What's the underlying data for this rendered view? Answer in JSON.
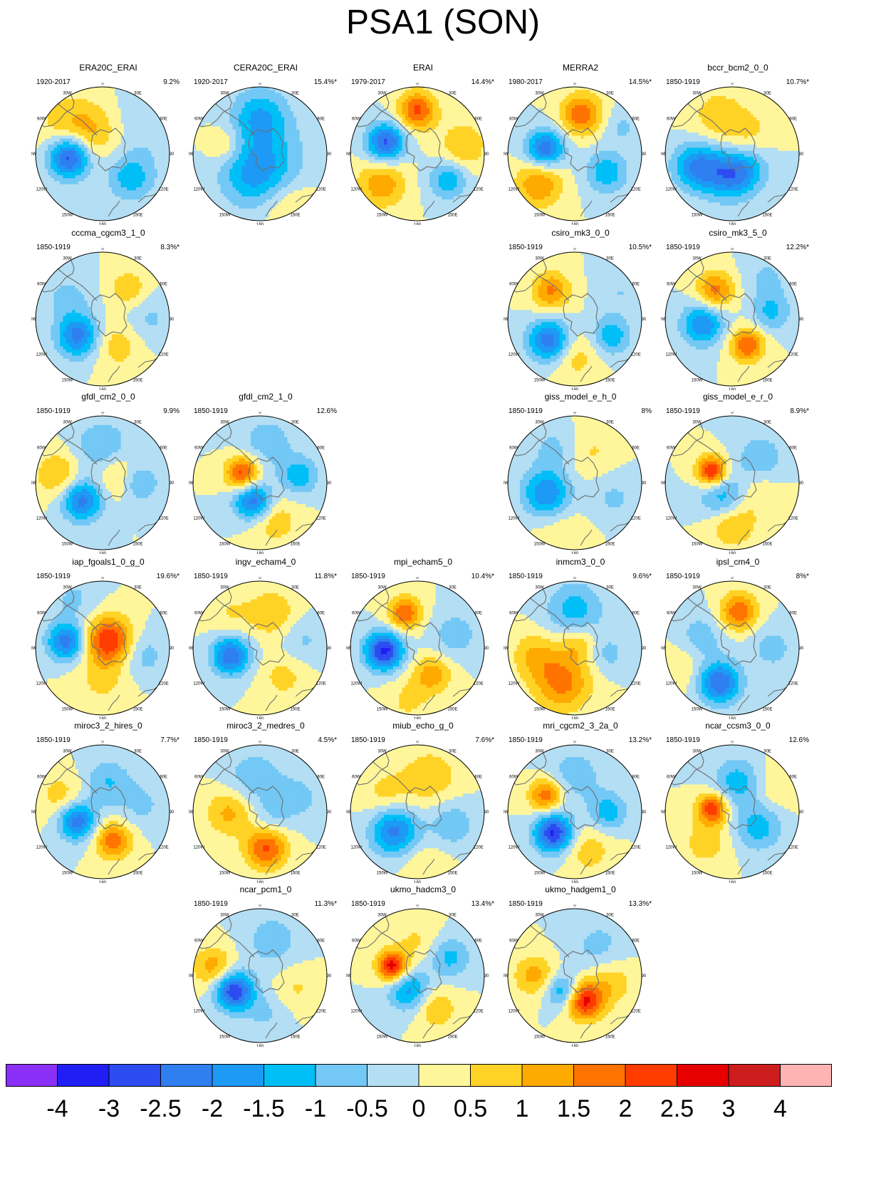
{
  "title": "PSA1 (SON)",
  "longitude_labels": [
    "0",
    "30E",
    "60E",
    "90E",
    "120E",
    "150E",
    "180",
    "150W",
    "120W",
    "90W",
    "60W",
    "30W"
  ],
  "colors": {
    "coast": "#6e6e6e",
    "border": "#000000",
    "palette": [
      "#8a2ff5",
      "#1e1ef5",
      "#2c4cf0",
      "#2f7ff0",
      "#1c9af5",
      "#00bff7",
      "#73c8f5",
      "#b3def3",
      "#fff69b",
      "#ffd326",
      "#ffaa00",
      "#ff7300",
      "#ff3c00",
      "#e60000",
      "#cd1c1c",
      "#ffb4b4"
    ]
  },
  "colorbar": {
    "labels": [
      "-4",
      "-3",
      "-2.5",
      "-2",
      "-1.5",
      "-1",
      "-0.5",
      "0",
      "0.5",
      "1",
      "1.5",
      "2",
      "2.5",
      "3",
      "4"
    ]
  },
  "chart_data": {
    "type": "polar stereographic contour maps",
    "levels": [
      -4,
      -3,
      -2.5,
      -2,
      -1.5,
      -1,
      -0.5,
      0,
      0.5,
      1,
      1.5,
      2,
      2.5,
      3,
      4
    ],
    "panels": [
      {
        "name": "ERA20C_ERAI",
        "period": "1920-2017",
        "percent": "9.2%",
        "row": 0,
        "col": 0,
        "anomalies": [
          {
            "lon": 265,
            "r": 0.5,
            "v": -3.0,
            "s": 0.22
          },
          {
            "lon": 130,
            "r": 0.55,
            "v": -1.3,
            "s": 0.25
          },
          {
            "lon": 60,
            "r": 0.85,
            "v": -0.5,
            "s": 0.4
          },
          {
            "lon": 330,
            "r": 0.35,
            "v": 0.9,
            "s": 0.3
          },
          {
            "lon": 310,
            "r": 0.7,
            "v": 0.7,
            "s": 0.35
          }
        ]
      },
      {
        "name": "CERA20C_ERAI",
        "period": "1920-2017",
        "percent": "15.4%*",
        "row": 0,
        "col": 1,
        "anomalies": [
          {
            "lon": 0,
            "r": 0.55,
            "v": -1.5,
            "s": 0.3
          },
          {
            "lon": 200,
            "r": 0.35,
            "v": -1.3,
            "s": 0.35
          },
          {
            "lon": 120,
            "r": 0.25,
            "v": -0.8,
            "s": 0.4
          },
          {
            "lon": 285,
            "r": 0.55,
            "v": 0.8,
            "s": 0.18
          },
          {
            "lon": 150,
            "r": 0.9,
            "v": 0.7,
            "s": 0.3
          }
        ]
      },
      {
        "name": "ERAI",
        "period": "1979-2017",
        "percent": "14.4%*",
        "row": 0,
        "col": 2,
        "anomalies": [
          {
            "lon": 290,
            "r": 0.5,
            "v": -2.6,
            "s": 0.2
          },
          {
            "lon": 0,
            "r": 0.65,
            "v": 2.1,
            "s": 0.2
          },
          {
            "lon": 230,
            "r": 0.7,
            "v": 1.4,
            "s": 0.25
          },
          {
            "lon": 130,
            "r": 0.6,
            "v": -1.4,
            "s": 0.2
          },
          {
            "lon": 80,
            "r": 0.7,
            "v": 1.0,
            "s": 0.25
          }
        ]
      },
      {
        "name": "MERRA2",
        "period": "1980-2017",
        "percent": "14.5%*",
        "row": 0,
        "col": 3,
        "anomalies": [
          {
            "lon": 280,
            "r": 0.45,
            "v": -2.4,
            "s": 0.2
          },
          {
            "lon": 10,
            "r": 0.6,
            "v": 1.9,
            "s": 0.22
          },
          {
            "lon": 230,
            "r": 0.7,
            "v": 1.5,
            "s": 0.25
          },
          {
            "lon": 120,
            "r": 0.55,
            "v": -1.4,
            "s": 0.22
          },
          {
            "lon": 60,
            "r": 0.8,
            "v": -0.6,
            "s": 0.2
          }
        ]
      },
      {
        "name": "bccr_bcm2_0_0",
        "period": "1850-1919",
        "percent": "10.7%*",
        "row": 0,
        "col": 4,
        "anomalies": [
          {
            "lon": 250,
            "r": 0.55,
            "v": -2.1,
            "s": 0.25
          },
          {
            "lon": 190,
            "r": 0.35,
            "v": -1.6,
            "s": 0.25
          },
          {
            "lon": 140,
            "r": 0.3,
            "v": -1.2,
            "s": 0.25
          },
          {
            "lon": 340,
            "r": 0.6,
            "v": 0.8,
            "s": 0.3
          },
          {
            "lon": 40,
            "r": 0.4,
            "v": 0.6,
            "s": 0.25
          }
        ]
      },
      {
        "name": "cccma_cgcm3_1_0",
        "period": "1850-1919",
        "percent": "8.3%*",
        "row": 1,
        "col": 0,
        "anomalies": [
          {
            "lon": 235,
            "r": 0.45,
            "v": -2.2,
            "s": 0.22
          },
          {
            "lon": 300,
            "r": 0.6,
            "v": -0.7,
            "s": 0.25
          },
          {
            "lon": 40,
            "r": 0.6,
            "v": 0.9,
            "s": 0.2
          },
          {
            "lon": 150,
            "r": 0.45,
            "v": 0.8,
            "s": 0.25
          },
          {
            "lon": 90,
            "r": 0.7,
            "v": -0.6,
            "s": 0.25
          }
        ]
      },
      {
        "name": "csiro_mk3_0_0",
        "period": "1850-1919",
        "percent": "10.5%*",
        "row": 1,
        "col": 3,
        "anomalies": [
          {
            "lon": 230,
            "r": 0.5,
            "v": -2.4,
            "s": 0.22
          },
          {
            "lon": 320,
            "r": 0.55,
            "v": 1.6,
            "s": 0.2
          },
          {
            "lon": 115,
            "r": 0.6,
            "v": -1.4,
            "s": 0.2
          },
          {
            "lon": 180,
            "r": 0.55,
            "v": 0.8,
            "s": 0.25
          },
          {
            "lon": 60,
            "r": 0.8,
            "v": -0.5,
            "s": 0.25
          }
        ]
      },
      {
        "name": "csiro_mk3_5_0",
        "period": "1850-1919",
        "percent": "12.2%*",
        "row": 1,
        "col": 4,
        "anomalies": [
          {
            "lon": 260,
            "r": 0.45,
            "v": -2.0,
            "s": 0.22
          },
          {
            "lon": 150,
            "r": 0.45,
            "v": 2.0,
            "s": 0.18
          },
          {
            "lon": 330,
            "r": 0.5,
            "v": 1.7,
            "s": 0.2
          },
          {
            "lon": 80,
            "r": 0.6,
            "v": -1.1,
            "s": 0.2
          },
          {
            "lon": 40,
            "r": 0.8,
            "v": -0.6,
            "s": 0.25
          }
        ]
      },
      {
        "name": "gfdl_cm2_0_0",
        "period": "1850-1919",
        "percent": "9.9%",
        "row": 2,
        "col": 0,
        "anomalies": [
          {
            "lon": 230,
            "r": 0.4,
            "v": -2.3,
            "s": 0.22
          },
          {
            "lon": 0,
            "r": 0.5,
            "v": -1.1,
            "s": 0.3
          },
          {
            "lon": 90,
            "r": 0.55,
            "v": -1.2,
            "s": 0.2
          },
          {
            "lon": 280,
            "r": 0.65,
            "v": 1.1,
            "s": 0.25
          },
          {
            "lon": 60,
            "r": 0.25,
            "v": 1.0,
            "s": 0.25
          }
        ]
      },
      {
        "name": "gfdl_cm2_1_0",
        "period": "1850-1919",
        "percent": "12.6%",
        "row": 2,
        "col": 1,
        "anomalies": [
          {
            "lon": 200,
            "r": 0.3,
            "v": -2.4,
            "s": 0.2
          },
          {
            "lon": 300,
            "r": 0.3,
            "v": 2.3,
            "s": 0.18
          },
          {
            "lon": 80,
            "r": 0.6,
            "v": -1.3,
            "s": 0.2
          },
          {
            "lon": 160,
            "r": 0.6,
            "v": 0.9,
            "s": 0.25
          },
          {
            "lon": 10,
            "r": 0.6,
            "v": -0.8,
            "s": 0.3
          }
        ]
      },
      {
        "name": "giss_model_e_h_0",
        "period": "1850-1919",
        "percent": "8%",
        "row": 2,
        "col": 3,
        "anomalies": [
          {
            "lon": 250,
            "r": 0.45,
            "v": -2.0,
            "s": 0.25
          },
          {
            "lon": 330,
            "r": 0.6,
            "v": -0.7,
            "s": 0.25
          },
          {
            "lon": 30,
            "r": 0.5,
            "v": 0.6,
            "s": 0.3
          },
          {
            "lon": 110,
            "r": 0.6,
            "v": -0.6,
            "s": 0.3
          },
          {
            "lon": 190,
            "r": 0.8,
            "v": 0.5,
            "s": 0.3
          }
        ]
      },
      {
        "name": "giss_model_e_r_0",
        "period": "1850-1919",
        "percent": "8.9%*",
        "row": 2,
        "col": 4,
        "anomalies": [
          {
            "lon": 300,
            "r": 0.35,
            "v": 2.7,
            "s": 0.16
          },
          {
            "lon": 210,
            "r": 0.25,
            "v": -1.5,
            "s": 0.25
          },
          {
            "lon": 50,
            "r": 0.55,
            "v": -1.0,
            "s": 0.25
          },
          {
            "lon": 180,
            "r": 0.6,
            "v": 1.2,
            "s": 0.25
          },
          {
            "lon": 110,
            "r": 0.4,
            "v": 0.6,
            "s": 0.25
          }
        ]
      },
      {
        "name": "iap_fgoals1_0_g_0",
        "period": "1850-1919",
        "percent": "19.6%*",
        "row": 3,
        "col": 0,
        "anomalies": [
          {
            "lon": 280,
            "r": 0.55,
            "v": -2.3,
            "s": 0.2
          },
          {
            "lon": 40,
            "r": 0.15,
            "v": 2.5,
            "s": 0.25
          },
          {
            "lon": 100,
            "r": 0.6,
            "v": -0.8,
            "s": 0.25
          },
          {
            "lon": 180,
            "r": 0.5,
            "v": 0.6,
            "s": 0.3
          },
          {
            "lon": 330,
            "r": 0.85,
            "v": -0.6,
            "s": 0.25
          }
        ]
      },
      {
        "name": "ingv_echam4_0",
        "period": "1850-1919",
        "percent": "11.8%*",
        "row": 3,
        "col": 1,
        "anomalies": [
          {
            "lon": 255,
            "r": 0.45,
            "v": -2.5,
            "s": 0.2
          },
          {
            "lon": 20,
            "r": 0.55,
            "v": 1.0,
            "s": 0.25
          },
          {
            "lon": 140,
            "r": 0.55,
            "v": 0.7,
            "s": 0.25
          },
          {
            "lon": 80,
            "r": 0.65,
            "v": -0.6,
            "s": 0.25
          },
          {
            "lon": 320,
            "r": 0.7,
            "v": 0.5,
            "s": 0.25
          }
        ]
      },
      {
        "name": "mpi_echam5_0",
        "period": "1850-1919",
        "percent": "10.4%*",
        "row": 3,
        "col": 2,
        "anomalies": [
          {
            "lon": 265,
            "r": 0.5,
            "v": -3.2,
            "s": 0.2
          },
          {
            "lon": 340,
            "r": 0.55,
            "v": 1.9,
            "s": 0.18
          },
          {
            "lon": 150,
            "r": 0.45,
            "v": 1.3,
            "s": 0.2
          },
          {
            "lon": 70,
            "r": 0.6,
            "v": -0.8,
            "s": 0.25
          },
          {
            "lon": 190,
            "r": 0.8,
            "v": 0.6,
            "s": 0.25
          }
        ]
      },
      {
        "name": "inmcm3_0_0",
        "period": "1850-1919",
        "percent": "9.6%*",
        "row": 3,
        "col": 3,
        "anomalies": [
          {
            "lon": 200,
            "r": 0.55,
            "v": 1.7,
            "s": 0.3
          },
          {
            "lon": 0,
            "r": 0.55,
            "v": -1.3,
            "s": 0.3
          },
          {
            "lon": 100,
            "r": 0.5,
            "v": -0.7,
            "s": 0.2
          },
          {
            "lon": 260,
            "r": 0.6,
            "v": 1.0,
            "s": 0.25
          },
          {
            "lon": 30,
            "r": 0.1,
            "v": 1.0,
            "s": 0.2
          }
        ]
      },
      {
        "name": "ipsl_cm4_0",
        "period": "1850-1919",
        "percent": "8%*",
        "row": 3,
        "col": 4,
        "anomalies": [
          {
            "lon": 200,
            "r": 0.55,
            "v": -2.5,
            "s": 0.22
          },
          {
            "lon": 10,
            "r": 0.55,
            "v": 1.9,
            "s": 0.2
          },
          {
            "lon": 290,
            "r": 0.5,
            "v": -0.8,
            "s": 0.25
          },
          {
            "lon": 90,
            "r": 0.6,
            "v": -0.7,
            "s": 0.25
          },
          {
            "lon": 250,
            "r": 0.8,
            "v": 0.5,
            "s": 0.25
          }
        ]
      },
      {
        "name": "miroc3_2_hires_0",
        "period": "1850-1919",
        "percent": "7.7%*",
        "row": 4,
        "col": 0,
        "anomalies": [
          {
            "lon": 250,
            "r": 0.4,
            "v": -2.4,
            "s": 0.2
          },
          {
            "lon": 160,
            "r": 0.45,
            "v": 1.8,
            "s": 0.2
          },
          {
            "lon": 10,
            "r": 0.45,
            "v": -1.0,
            "s": 0.25
          },
          {
            "lon": 290,
            "r": 0.65,
            "v": 0.8,
            "s": 0.25
          },
          {
            "lon": 80,
            "r": 0.6,
            "v": -0.6,
            "s": 0.25
          }
        ]
      },
      {
        "name": "miroc3_2_medres_0",
        "period": "1850-1919",
        "percent": "4.5%*",
        "row": 4,
        "col": 1,
        "anomalies": [
          {
            "lon": 170,
            "r": 0.55,
            "v": 2.1,
            "s": 0.22
          },
          {
            "lon": 270,
            "r": 0.45,
            "v": 1.2,
            "s": 0.25
          },
          {
            "lon": 350,
            "r": 0.5,
            "v": -0.9,
            "s": 0.3
          },
          {
            "lon": 70,
            "r": 0.6,
            "v": -0.7,
            "s": 0.25
          },
          {
            "lon": 120,
            "r": 0.2,
            "v": -0.5,
            "s": 0.2
          }
        ]
      },
      {
        "name": "miub_echo_g_0",
        "period": "1850-1919",
        "percent": "7.6%*",
        "row": 4,
        "col": 2,
        "anomalies": [
          {
            "lon": 230,
            "r": 0.45,
            "v": -2.2,
            "s": 0.25
          },
          {
            "lon": 20,
            "r": 0.55,
            "v": 0.9,
            "s": 0.3
          },
          {
            "lon": 110,
            "r": 0.55,
            "v": -0.9,
            "s": 0.25
          },
          {
            "lon": 300,
            "r": 0.55,
            "v": 0.7,
            "s": 0.25
          },
          {
            "lon": 170,
            "r": 0.8,
            "v": 0.5,
            "s": 0.25
          }
        ]
      },
      {
        "name": "mri_cgcm2_3_2a_0",
        "period": "1850-1919",
        "percent": "13.2%*",
        "row": 4,
        "col": 3,
        "anomalies": [
          {
            "lon": 225,
            "r": 0.45,
            "v": -3.1,
            "s": 0.2
          },
          {
            "lon": 300,
            "r": 0.5,
            "v": 1.9,
            "s": 0.18
          },
          {
            "lon": 90,
            "r": 0.5,
            "v": -1.3,
            "s": 0.2
          },
          {
            "lon": 0,
            "r": 0.55,
            "v": -0.8,
            "s": 0.3
          },
          {
            "lon": 160,
            "r": 0.6,
            "v": 0.8,
            "s": 0.25
          }
        ]
      },
      {
        "name": "ncar_ccsm3_0_0",
        "period": "1850-1919",
        "percent": "12.6%",
        "row": 4,
        "col": 4,
        "anomalies": [
          {
            "lon": 280,
            "r": 0.3,
            "v": 2.4,
            "s": 0.16
          },
          {
            "lon": 10,
            "r": 0.45,
            "v": -1.3,
            "s": 0.25
          },
          {
            "lon": 120,
            "r": 0.45,
            "v": -1.3,
            "s": 0.25
          },
          {
            "lon": 220,
            "r": 0.6,
            "v": 0.8,
            "s": 0.25
          },
          {
            "lon": 60,
            "r": 0.75,
            "v": 0.5,
            "s": 0.25
          }
        ]
      },
      {
        "name": "ncar_pcm1_0",
        "period": "1850-1919",
        "percent": "11.3%*",
        "row": 5,
        "col": 1,
        "anomalies": [
          {
            "lon": 240,
            "r": 0.45,
            "v": -3.0,
            "s": 0.2
          },
          {
            "lon": 280,
            "r": 0.7,
            "v": 1.3,
            "s": 0.22
          },
          {
            "lon": 20,
            "r": 0.55,
            "v": -0.8,
            "s": 0.3
          },
          {
            "lon": 110,
            "r": 0.55,
            "v": 0.6,
            "s": 0.25
          },
          {
            "lon": 170,
            "r": 0.55,
            "v": -0.6,
            "s": 0.25
          }
        ]
      },
      {
        "name": "ukmo_hadcm3_0",
        "period": "1850-1919",
        "percent": "13.4%*",
        "row": 5,
        "col": 2,
        "anomalies": [
          {
            "lon": 290,
            "r": 0.4,
            "v": 2.8,
            "s": 0.16
          },
          {
            "lon": 210,
            "r": 0.25,
            "v": -1.7,
            "s": 0.22
          },
          {
            "lon": 60,
            "r": 0.55,
            "v": -1.2,
            "s": 0.22
          },
          {
            "lon": 150,
            "r": 0.55,
            "v": 1.0,
            "s": 0.22
          },
          {
            "lon": 0,
            "r": 0.5,
            "v": 0.6,
            "s": 0.25
          }
        ]
      },
      {
        "name": "ukmo_hadgem1_0",
        "period": "1850-1919",
        "percent": "13.3%*",
        "row": 5,
        "col": 3,
        "anomalies": [
          {
            "lon": 160,
            "r": 0.4,
            "v": 2.7,
            "s": 0.2
          },
          {
            "lon": 215,
            "r": 0.3,
            "v": -1.7,
            "s": 0.18
          },
          {
            "lon": 270,
            "r": 0.6,
            "v": 1.2,
            "s": 0.22
          },
          {
            "lon": 40,
            "r": 0.55,
            "v": -0.7,
            "s": 0.3
          },
          {
            "lon": 100,
            "r": 0.55,
            "v": 0.9,
            "s": 0.25
          }
        ]
      }
    ]
  }
}
